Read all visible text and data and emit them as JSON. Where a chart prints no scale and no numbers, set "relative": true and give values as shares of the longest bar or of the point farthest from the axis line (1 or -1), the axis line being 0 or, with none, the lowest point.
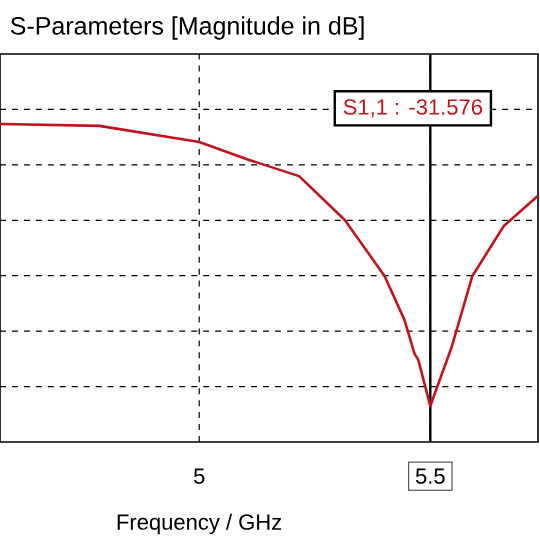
{
  "chart_data": {
    "type": "line",
    "title": "S-Parameters [Magnitude in dB]",
    "xlabel": "Frequency / GHz",
    "relative": true,
    "x": [
      4.569,
      4.784,
      5.0,
      5.108,
      5.216,
      5.315,
      5.401,
      5.444,
      5.466,
      5.474,
      5.5,
      5.547,
      5.591,
      5.659,
      5.733
    ],
    "series": [
      {
        "color": "#c0141e",
        "values": [
          1.0,
          0.994,
          0.943,
          0.887,
          0.836,
          0.698,
          0.522,
          0.384,
          0.277,
          0.258,
          0.113,
          0.302,
          0.522,
          0.679,
          0.774
        ]
      }
    ],
    "xlim": [
      4.569,
      5.733
    ],
    "xticks": [
      5,
      5.5
    ],
    "grid": true,
    "marker": "none",
    "line_style": "solid",
    "tick_labels": "x",
    "ref_lines": [
      {
        "axis": "x",
        "value": 5.5,
        "color": "#000000"
      }
    ],
    "annotations": [
      "S1,1 : -31.576"
    ]
  }
}
